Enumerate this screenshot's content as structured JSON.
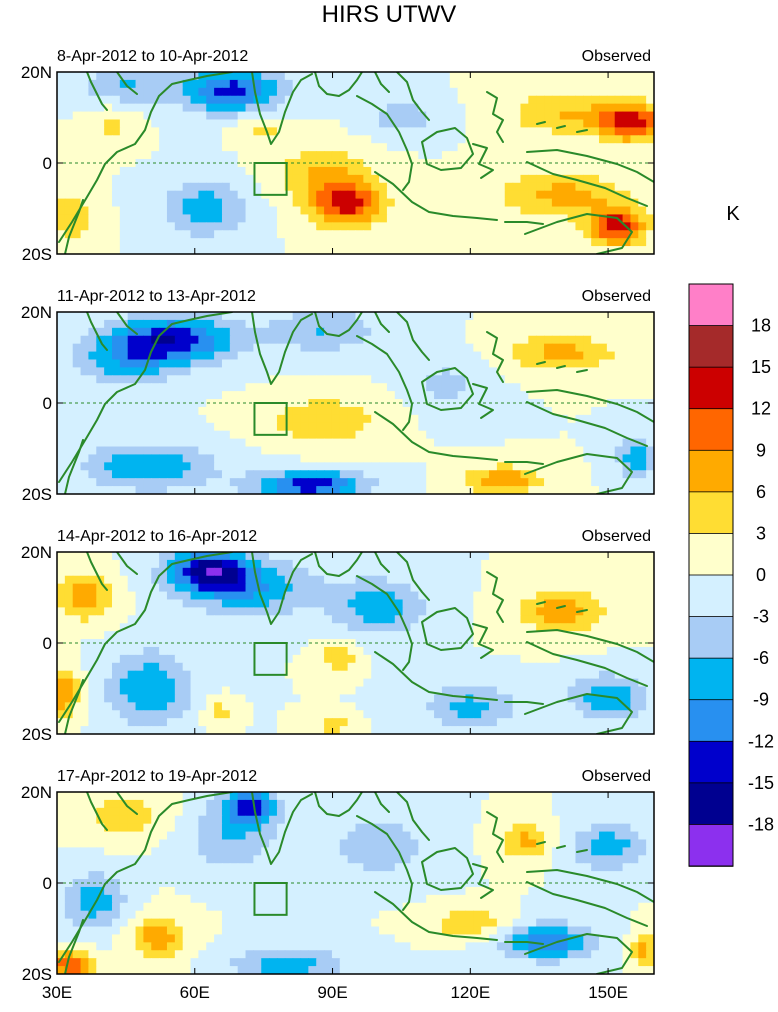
{
  "figure": {
    "title": "HIRS UTWV",
    "units": "K"
  },
  "chart_data": {
    "type": "heatmap",
    "title": "HIRS UTWV",
    "colorbar_label": "K",
    "colorbar_ticks": [
      "18",
      "15",
      "12",
      "9",
      "6",
      "3",
      "0",
      "-3",
      "-6",
      "-9",
      "-12",
      "-15",
      "-18"
    ],
    "color_levels": [
      "#ff7fc8",
      "#a52a2a",
      "#cc0000",
      "#ff6600",
      "#ffaa00",
      "#ffdd33",
      "#ffffcc",
      "#d4f0ff",
      "#a8ccf5",
      "#00b4f0",
      "#2890f0",
      "#0000cc",
      "#000090",
      "#8c30ee"
    ],
    "x_range": [
      30,
      160
    ],
    "y_range": [
      -20,
      20
    ],
    "x_ticks": [
      {
        "value": 30,
        "label": "30E"
      },
      {
        "value": 60,
        "label": "60E"
      },
      {
        "value": 90,
        "label": "90E"
      },
      {
        "value": 120,
        "label": "120E"
      },
      {
        "value": 150,
        "label": "150E"
      }
    ],
    "y_ticks": [
      {
        "value": 20,
        "label": "20N"
      },
      {
        "value": 0,
        "label": "0"
      },
      {
        "value": -20,
        "label": "20S"
      }
    ],
    "box_region": {
      "lon": [
        73,
        80
      ],
      "lat": [
        -7,
        0
      ]
    },
    "panels": [
      {
        "period": "8-Apr-2012 to 10-Apr-2012",
        "tag": "Observed",
        "features": [
          {
            "lon": 68,
            "lat": 16,
            "value": -13,
            "spread": [
              11,
              5
            ]
          },
          {
            "lon": 45,
            "lat": 17,
            "value": -6,
            "spread": [
              10,
              4
            ]
          },
          {
            "lon": 62,
            "lat": -10,
            "value": -8,
            "spread": [
              9,
              6
            ]
          },
          {
            "lon": 93,
            "lat": -9,
            "value": 13,
            "spread": [
              8,
              5
            ]
          },
          {
            "lon": 88,
            "lat": -2,
            "value": 6,
            "spread": [
              10,
              6
            ]
          },
          {
            "lon": 155,
            "lat": 9,
            "value": 14,
            "spread": [
              7,
              4
            ]
          },
          {
            "lon": 140,
            "lat": 11,
            "value": 6,
            "spread": [
              12,
              5
            ]
          },
          {
            "lon": 152,
            "lat": -14,
            "value": 14,
            "spread": [
              6,
              4
            ]
          },
          {
            "lon": 140,
            "lat": -7,
            "value": 7,
            "spread": [
              14,
              5
            ]
          },
          {
            "lon": 33,
            "lat": -12,
            "value": 5,
            "spread": [
              5,
              6
            ]
          },
          {
            "lon": 75,
            "lat": 8,
            "value": 4,
            "spread": [
              6,
              3
            ]
          },
          {
            "lon": 105,
            "lat": 10,
            "value": -5,
            "spread": [
              8,
              4
            ]
          },
          {
            "lon": 42,
            "lat": 8,
            "value": 4,
            "spread": [
              5,
              4
            ]
          }
        ]
      },
      {
        "period": "11-Apr-2012 to 13-Apr-2012",
        "tag": "Observed",
        "features": [
          {
            "lon": 55,
            "lat": 14,
            "value": -14,
            "spread": [
              14,
              5
            ]
          },
          {
            "lon": 45,
            "lat": 9,
            "value": -7,
            "spread": [
              12,
              5
            ]
          },
          {
            "lon": 88,
            "lat": 16,
            "value": -6,
            "spread": [
              12,
              5
            ]
          },
          {
            "lon": 85,
            "lat": -18,
            "value": -14,
            "spread": [
              12,
              3
            ]
          },
          {
            "lon": 50,
            "lat": -14,
            "value": -9,
            "spread": [
              14,
              5
            ]
          },
          {
            "lon": 88,
            "lat": -4,
            "value": 6,
            "spread": [
              12,
              5
            ]
          },
          {
            "lon": 140,
            "lat": 11,
            "value": 7,
            "spread": [
              12,
              4
            ]
          },
          {
            "lon": 127,
            "lat": -17,
            "value": 9,
            "spread": [
              8,
              3
            ]
          },
          {
            "lon": 156,
            "lat": -12,
            "value": -8,
            "spread": [
              4,
              5
            ]
          },
          {
            "lon": 115,
            "lat": 4,
            "value": -4,
            "spread": [
              8,
              6
            ]
          }
        ]
      },
      {
        "period": "14-Apr-2012 to 16-Apr-2012",
        "tag": "Observed",
        "features": [
          {
            "lon": 63,
            "lat": 16,
            "value": -15,
            "spread": [
              9,
              5
            ]
          },
          {
            "lon": 73,
            "lat": 12,
            "value": -8,
            "spread": [
              14,
              6
            ]
          },
          {
            "lon": 36,
            "lat": 10,
            "value": 8,
            "spread": [
              6,
              5
            ]
          },
          {
            "lon": 31,
            "lat": -11,
            "value": 9,
            "spread": [
              4,
              5
            ]
          },
          {
            "lon": 50,
            "lat": -10,
            "value": -9,
            "spread": [
              9,
              8
            ]
          },
          {
            "lon": 100,
            "lat": 8,
            "value": -8,
            "spread": [
              10,
              6
            ]
          },
          {
            "lon": 140,
            "lat": 7,
            "value": 8,
            "spread": [
              9,
              5
            ]
          },
          {
            "lon": 91,
            "lat": -3,
            "value": 6,
            "spread": [
              4,
              3
            ]
          },
          {
            "lon": 150,
            "lat": -12,
            "value": -9,
            "spread": [
              8,
              5
            ]
          },
          {
            "lon": 65,
            "lat": -15,
            "value": 5,
            "spread": [
              3,
              3
            ]
          },
          {
            "lon": 90,
            "lat": -18,
            "value": 5,
            "spread": [
              4,
              2
            ]
          },
          {
            "lon": 120,
            "lat": -14,
            "value": -7,
            "spread": [
              10,
              5
            ]
          }
        ]
      },
      {
        "period": "17-Apr-2012 to 19-Apr-2012",
        "tag": "Observed",
        "features": [
          {
            "lon": 72,
            "lat": 17,
            "value": -12,
            "spread": [
              6,
              4
            ]
          },
          {
            "lon": 68,
            "lat": 10,
            "value": -6,
            "spread": [
              10,
              7
            ]
          },
          {
            "lon": 45,
            "lat": 15,
            "value": 5,
            "spread": [
              9,
              5
            ]
          },
          {
            "lon": 38,
            "lat": -4,
            "value": -8,
            "spread": [
              7,
              6
            ]
          },
          {
            "lon": 52,
            "lat": -12,
            "value": 8,
            "spread": [
              6,
              5
            ]
          },
          {
            "lon": 33,
            "lat": -18,
            "value": 12,
            "spread": [
              5,
              3
            ]
          },
          {
            "lon": 80,
            "lat": -18,
            "value": -8,
            "spread": [
              12,
              4
            ]
          },
          {
            "lon": 137,
            "lat": -13,
            "value": -11,
            "spread": [
              10,
              4
            ]
          },
          {
            "lon": 132,
            "lat": 9,
            "value": 7,
            "spread": [
              5,
              4
            ]
          },
          {
            "lon": 150,
            "lat": 8,
            "value": -8,
            "spread": [
              8,
              5
            ]
          },
          {
            "lon": 120,
            "lat": -9,
            "value": 6,
            "spread": [
              8,
              3
            ]
          },
          {
            "lon": 100,
            "lat": 8,
            "value": -6,
            "spread": [
              10,
              6
            ]
          },
          {
            "lon": 158,
            "lat": -15,
            "value": 7,
            "spread": [
              3,
              4
            ]
          }
        ]
      }
    ]
  }
}
